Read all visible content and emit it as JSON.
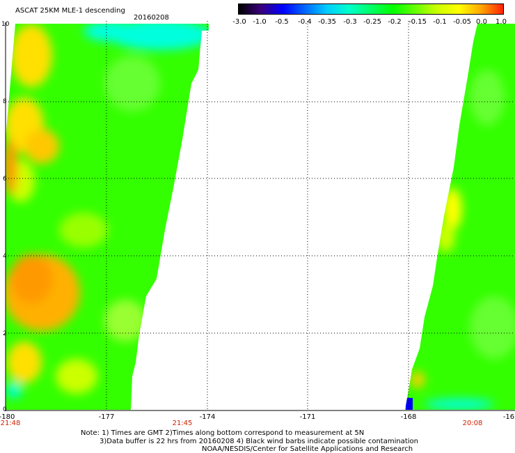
{
  "header": {
    "title": "ASCAT 25KM MLE-1 descending",
    "date": "20160208"
  },
  "colorbar": {
    "labels": [
      "-3.0",
      "-1.0",
      "-0.5",
      "-0.4",
      "-0.35",
      "-0.3",
      "-0.25",
      "-0.2",
      "-0.15",
      "-0.1",
      "-0.05",
      "0.0",
      "1.0"
    ],
    "colors": [
      "#000000",
      "#3a007a",
      "#0000ff",
      "#0066ff",
      "#00ccff",
      "#00ffcc",
      "#00ff66",
      "#00ff00",
      "#66ff00",
      "#ccff00",
      "#ffff00",
      "#ffa500",
      "#ff2200"
    ]
  },
  "map": {
    "lon_labels": [
      "-180",
      "-177",
      "-174",
      "-171",
      "-168",
      "-16"
    ],
    "lat_labels": [
      "10",
      "8",
      "6",
      "4",
      "2",
      "0"
    ],
    "time_labels": [
      "21:48",
      "21:45",
      "20:08"
    ],
    "colors": {
      "field_green": "#33ff00",
      "field_yellow": "#ffe000",
      "field_orange": "#ff9900",
      "field_cyan": "#00ffdd",
      "contamination_blue": "#0000ff",
      "grid": "#000000",
      "time_text": "#cc2200"
    }
  },
  "notes": {
    "line1": "Note: 1) Times are GMT 2)Times along bottom correspond to measurement at 5N",
    "line2": "3)Data buffer is 22 hrs from 20160208 4) Black wind barbs indicate possible contamination",
    "line3": "NOAA/NESDIS/Center for Satellite Applications and Research"
  }
}
